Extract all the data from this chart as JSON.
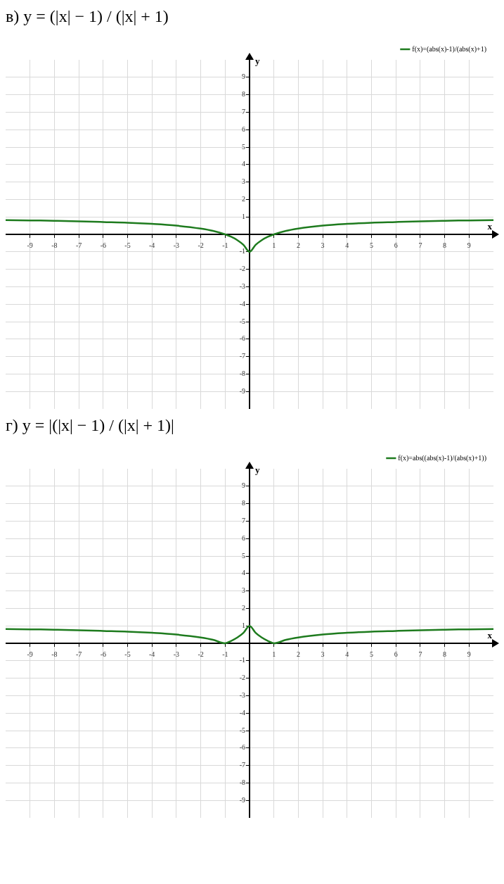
{
  "chart_data": [
    {
      "type": "line",
      "title": "в) y = (|x| − 1) / (|x| + 1)",
      "xlabel": "x",
      "ylabel": "y",
      "x": [
        -10,
        -9,
        -8,
        -7,
        -6,
        -5,
        -4,
        -3,
        -2,
        -1.5,
        -1,
        -0.75,
        -0.5,
        -0.25,
        0,
        0.25,
        0.5,
        0.75,
        1,
        1.5,
        2,
        3,
        4,
        5,
        6,
        7,
        8,
        9,
        10
      ],
      "series": [
        {
          "name": "f(x)=(abs(x)-1)/(abs(x)+1)",
          "color": "#1e7b1e",
          "values": [
            0.82,
            0.8,
            0.78,
            0.75,
            0.71,
            0.67,
            0.6,
            0.5,
            0.33,
            0.2,
            0,
            -0.14,
            -0.33,
            -0.6,
            -1,
            -0.6,
            -0.33,
            -0.14,
            0,
            0.2,
            0.33,
            0.5,
            0.6,
            0.67,
            0.71,
            0.75,
            0.78,
            0.8,
            0.82
          ]
        }
      ],
      "xlim": [
        -10,
        10
      ],
      "ylim": [
        -10,
        10
      ],
      "xticks": [
        -9,
        -8,
        -7,
        -6,
        -5,
        -4,
        -3,
        -2,
        -1,
        1,
        2,
        3,
        4,
        5,
        6,
        7,
        8,
        9
      ],
      "yticks": [
        -9,
        -8,
        -7,
        -6,
        -5,
        -4,
        -3,
        -2,
        -1,
        1,
        2,
        3,
        4,
        5,
        6,
        7,
        8,
        9
      ],
      "grid": true,
      "legend": "top right",
      "marker": "none",
      "line_style": "solid"
    },
    {
      "type": "line",
      "title": "г) y = |(|x| − 1) / (|x| + 1)|",
      "xlabel": "x",
      "ylabel": "y",
      "x": [
        -10,
        -9,
        -8,
        -7,
        -6,
        -5,
        -4,
        -3,
        -2,
        -1.5,
        -1,
        -0.75,
        -0.5,
        -0.25,
        0,
        0.25,
        0.5,
        0.75,
        1,
        1.5,
        2,
        3,
        4,
        5,
        6,
        7,
        8,
        9,
        10
      ],
      "series": [
        {
          "name": "f(x)=abs((abs(x)-1)/(abs(x)+1))",
          "color": "#1e7b1e",
          "values": [
            0.82,
            0.8,
            0.78,
            0.75,
            0.71,
            0.67,
            0.6,
            0.5,
            0.33,
            0.2,
            0,
            0.14,
            0.33,
            0.6,
            1,
            0.6,
            0.33,
            0.14,
            0,
            0.2,
            0.33,
            0.5,
            0.6,
            0.67,
            0.71,
            0.75,
            0.78,
            0.8,
            0.82
          ]
        }
      ],
      "xlim": [
        -10,
        10
      ],
      "ylim": [
        -10,
        10
      ],
      "xticks": [
        -9,
        -8,
        -7,
        -6,
        -5,
        -4,
        -3,
        -2,
        -1,
        1,
        2,
        3,
        4,
        5,
        6,
        7,
        8,
        9
      ],
      "yticks": [
        -9,
        -8,
        -7,
        -6,
        -5,
        -4,
        -3,
        -2,
        -1,
        1,
        2,
        3,
        4,
        5,
        6,
        7,
        8,
        9
      ],
      "grid": true,
      "legend": "top right",
      "marker": "none",
      "line_style": "solid"
    }
  ]
}
